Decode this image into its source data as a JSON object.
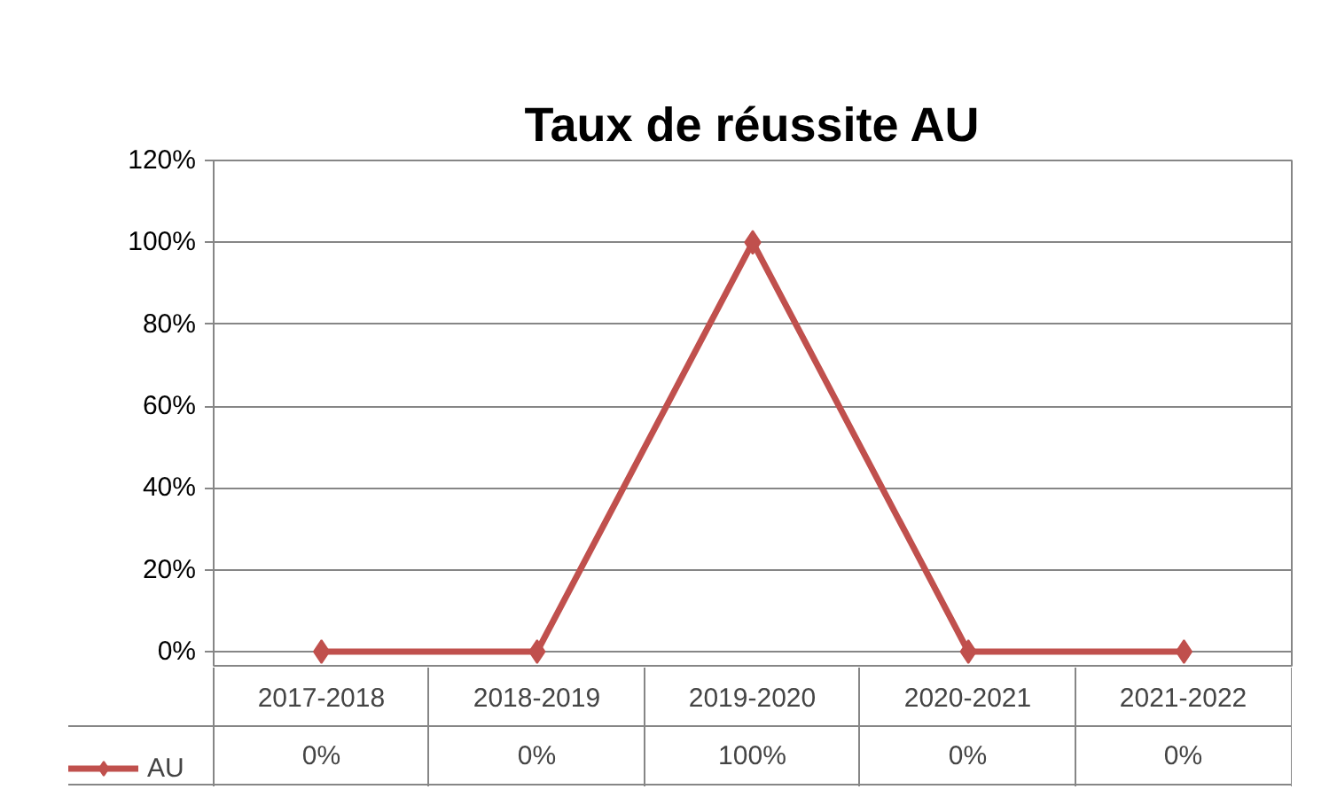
{
  "chart_data": {
    "type": "line",
    "title": "Taux de réussite AU",
    "categories": [
      "2017-2018",
      "2018-2019",
      "2019-2020",
      "2020-2021",
      "2021-2022"
    ],
    "series": [
      {
        "name": "AU",
        "color": "#c0504d",
        "values": [
          0,
          0,
          100,
          0,
          0
        ]
      }
    ],
    "value_labels": [
      "0%",
      "0%",
      "100%",
      "0%",
      "0%"
    ],
    "ylim": [
      0,
      120
    ],
    "yticks": [
      {
        "value": 0,
        "label": "0%"
      },
      {
        "value": 20,
        "label": "20%"
      },
      {
        "value": 40,
        "label": "40%"
      },
      {
        "value": 60,
        "label": "60%"
      },
      {
        "value": 80,
        "label": "80%"
      },
      {
        "value": 100,
        "label": "100%"
      },
      {
        "value": 120,
        "label": "120%"
      }
    ],
    "grid": "y",
    "legend": "bottom left",
    "marker": "diamond",
    "line_style": "solid"
  }
}
